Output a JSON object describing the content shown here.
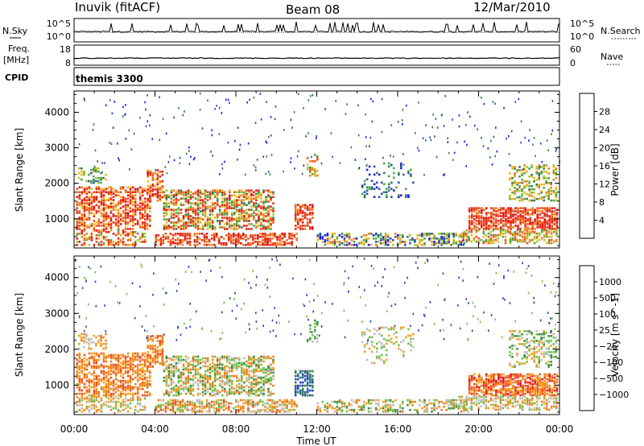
{
  "header": {
    "station": "Inuvik (fitACF)",
    "beam": "Beam 08",
    "date": "12/Mar/2010"
  },
  "side_labels": {
    "nsky": "N.Sky",
    "nsearch": "N.Search",
    "freq_line1": "Freq.",
    "freq_line2": "[MHz]",
    "nave": "Nave",
    "cpid": "CPID"
  },
  "cpid_value": "themis 3300",
  "noise_panel": {
    "left_ticks": [
      "10^5",
      "10^0"
    ],
    "right_ticks": [
      "10^5",
      "10^0"
    ]
  },
  "freq_panel": {
    "left_ticks": [
      "18",
      "8"
    ],
    "right_ticks": [
      "60",
      "0"
    ],
    "freq_value_mhz": 11.5
  },
  "colors": {
    "power_scale": [
      "#1d1df0",
      "#2a4fae",
      "#2f7f48",
      "#4fa34a",
      "#a3c81f",
      "#f5b41c",
      "#f07f1e",
      "#f0501e",
      "#e8281a",
      "#e0140f"
    ],
    "velocity_scale": [
      "#2e3fb8",
      "#2f6da0",
      "#3c8c3c",
      "#6cc24a",
      "#bdbdbd",
      "#f5a01c",
      "#ef7f1f",
      "#f0501e",
      "#e41a1c"
    ]
  },
  "chart_data": [
    {
      "type": "heatmap",
      "name": "power",
      "ylabel": "Slant Range [km]",
      "colorbar_label": "Power [dB]",
      "colorbar_ticks": [
        "28",
        "24",
        "20",
        "16",
        "12",
        "8",
        "4"
      ],
      "colorbar_range": [
        0,
        32
      ],
      "ylim": [
        180,
        4600
      ],
      "y_ticks": [
        "4000",
        "3000",
        "2000",
        "1000"
      ],
      "xlim_hours": [
        0,
        24
      ],
      "x_tick_labels": [
        "00:00",
        "04:00",
        "08:00",
        "12:00",
        "16:00",
        "20:00",
        "00:00"
      ],
      "xlabel": "Time UT"
    },
    {
      "type": "heatmap",
      "name": "velocity",
      "ylabel": "Slant Range [km]",
      "colorbar_label": "Velocity [m s^-1]",
      "colorbar_ticks": [
        "1000",
        "500",
        "100",
        "25",
        "−25",
        "−100",
        "−500",
        "−1000"
      ],
      "ylim": [
        180,
        4600
      ],
      "y_ticks": [
        "4000",
        "3000",
        "2000",
        "1000"
      ],
      "xlim_hours": [
        0,
        24
      ],
      "x_tick_labels": [
        "00:00",
        "04:00",
        "08:00",
        "12:00",
        "16:00",
        "20:00",
        "00:00"
      ],
      "xlabel": "Time UT"
    }
  ]
}
